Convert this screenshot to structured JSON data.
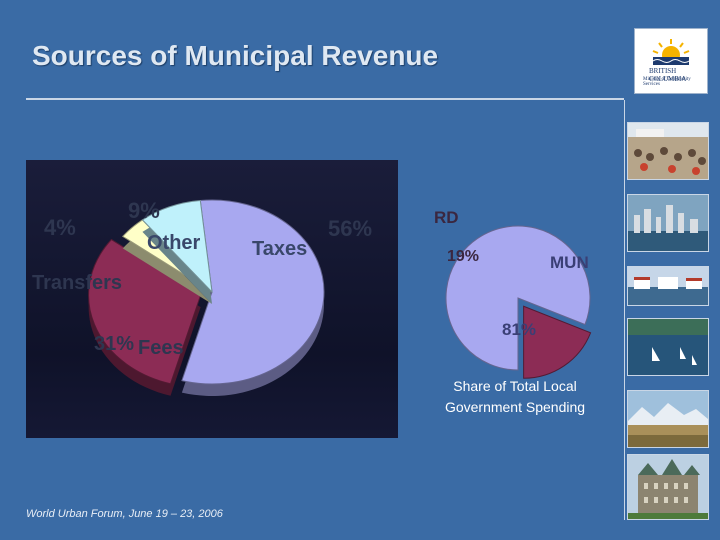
{
  "slide": {
    "title": "Sources of Municipal Revenue",
    "footer": "World Urban Forum, June 19 – 23, 2006"
  },
  "logo": {
    "line1": "BRITISH COLUMBIA",
    "line2": "Ministry of Community Services"
  },
  "chart_data": [
    {
      "type": "pie",
      "title": "",
      "slices": [
        {
          "label": "Taxes",
          "value": 56,
          "value_label": "56%",
          "color": "#a8a8f0"
        },
        {
          "label": "Fees",
          "value": 31,
          "value_label": "31%",
          "color": "#8c2c55"
        },
        {
          "label": "Transfers",
          "value": 4,
          "value_label": "4%",
          "color": "#ffffc8"
        },
        {
          "label": "Other",
          "value": 9,
          "value_label": "9%",
          "color": "#bff1fb"
        }
      ]
    },
    {
      "type": "pie",
      "title": "Share of Total Local Government Spending",
      "slices": [
        {
          "label": "MUN",
          "value": 81,
          "value_label": "81%",
          "color": "#a8a8f0"
        },
        {
          "label": "RD",
          "value": 19,
          "value_label": "19%",
          "color": "#8c2c55"
        }
      ]
    }
  ]
}
